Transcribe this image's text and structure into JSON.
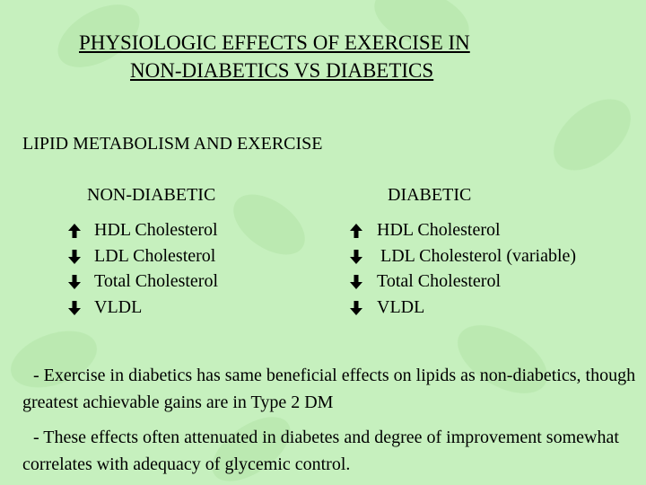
{
  "header": {
    "title_lines": [
      "PHYSIOLOGIC EFFECTS OF EXERCISE IN",
      "NON-DIABETICS VS DIABETICS"
    ]
  },
  "subtitle": "LIPID METABOLISM AND EXERCISE",
  "columns": [
    {
      "heading": "NON-DIABETIC",
      "items": [
        "HDL Cholesterol",
        "LDL Cholesterol",
        "Total Cholesterol",
        "VLDL"
      ]
    },
    {
      "heading": "DIABETIC",
      "items": [
        "HDL Cholesterol",
        "LDL Cholesterol (variable)",
        "Total Cholesterol",
        "VLDL"
      ]
    }
  ],
  "notes": [
    "-  Exercise in diabetics has same beneficial effects on lipids as non-diabetics, though greatest achievable gains are in Type 2 DM",
    "-  These effects often attenuated in diabetes and degree of improvement somewhat correlates with adequacy of glycemic control."
  ]
}
